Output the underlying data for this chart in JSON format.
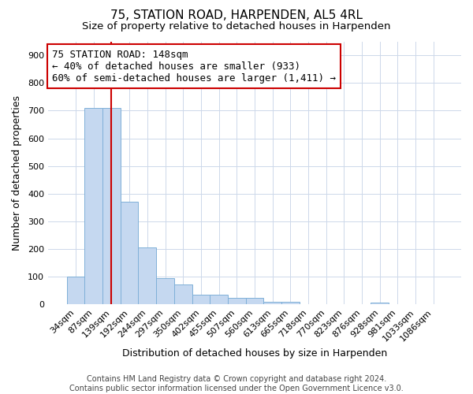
{
  "title": "75, STATION ROAD, HARPENDEN, AL5 4RL",
  "subtitle": "Size of property relative to detached houses in Harpenden",
  "xlabel": "Distribution of detached houses by size in Harpenden",
  "ylabel": "Number of detached properties",
  "footer_line1": "Contains HM Land Registry data © Crown copyright and database right 2024.",
  "footer_line2": "Contains public sector information licensed under the Open Government Licence v3.0.",
  "categories": [
    "34sqm",
    "87sqm",
    "139sqm",
    "192sqm",
    "244sqm",
    "297sqm",
    "350sqm",
    "402sqm",
    "455sqm",
    "507sqm",
    "560sqm",
    "613sqm",
    "665sqm",
    "718sqm",
    "770sqm",
    "823sqm",
    "876sqm",
    "928sqm",
    "981sqm",
    "1033sqm",
    "1086sqm"
  ],
  "values": [
    100,
    710,
    710,
    370,
    205,
    95,
    72,
    35,
    35,
    25,
    25,
    10,
    10,
    0,
    0,
    0,
    0,
    7,
    0,
    0,
    0
  ],
  "bar_facecolor": "#c5d8f0",
  "bar_edgecolor": "#7fb0d8",
  "highlight_line_color": "#cc0000",
  "property_line_bar_index": 2,
  "annotation_title": "75 STATION ROAD: 148sqm",
  "annotation_line1": "← 40% of detached houses are smaller (933)",
  "annotation_line2": "60% of semi-detached houses are larger (1,411) →",
  "annotation_box_color": "#ffffff",
  "annotation_box_edge": "#cc0000",
  "ylim": [
    0,
    950
  ],
  "yticks": [
    0,
    100,
    200,
    300,
    400,
    500,
    600,
    700,
    800,
    900
  ],
  "title_fontsize": 11,
  "subtitle_fontsize": 9.5,
  "axis_label_fontsize": 9,
  "tick_fontsize": 8,
  "annotation_fontsize": 9,
  "footer_fontsize": 7,
  "background_color": "#ffffff",
  "grid_color": "#cdd8ea"
}
